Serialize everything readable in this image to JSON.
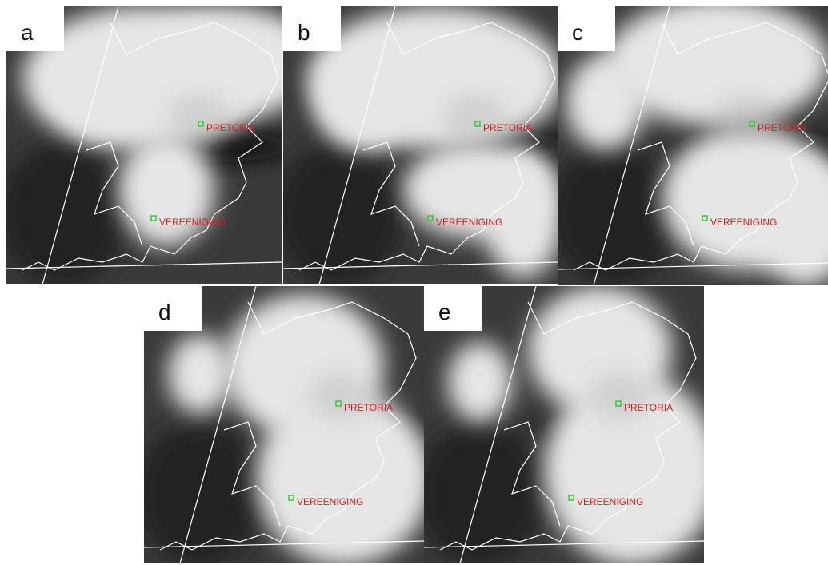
{
  "panels": [
    {
      "label": "a"
    },
    {
      "label": "b"
    },
    {
      "label": "c"
    },
    {
      "label": "d"
    },
    {
      "label": "e"
    }
  ],
  "cities": [
    "PRETORIA",
    "VEREENIGING"
  ]
}
